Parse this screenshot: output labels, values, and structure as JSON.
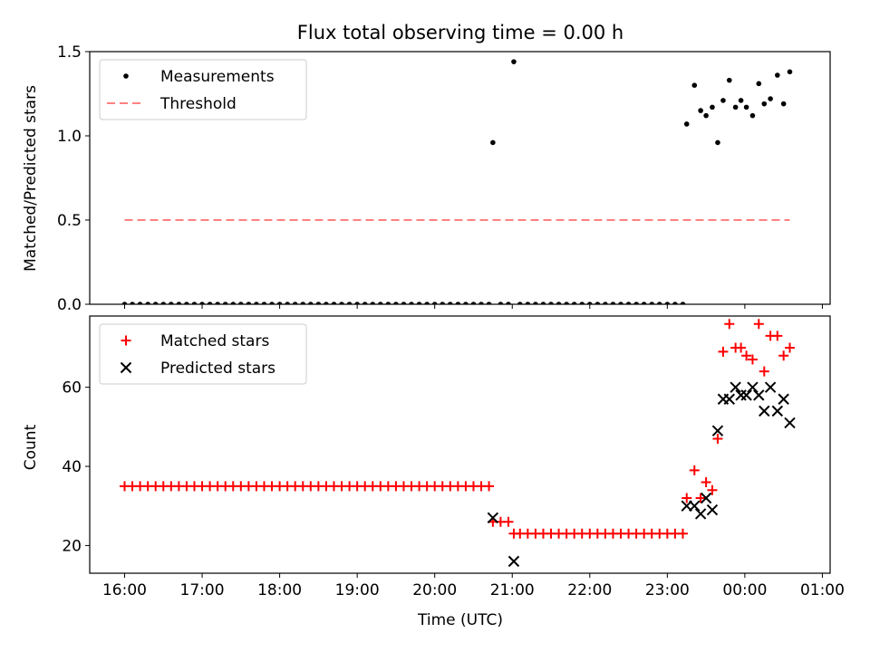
{
  "chart_data": [
    {
      "type": "scatter",
      "title": "Flux total observing time = 0.00 h",
      "ylabel": "Matched/Predicted stars",
      "xlabel": "",
      "xlim": [
        -0.45,
        9.1
      ],
      "ylim": [
        0,
        1.5
      ],
      "yticks": [
        0.0,
        0.5,
        1.0,
        1.5
      ],
      "ytick_labels": [
        "0.0",
        "0.5",
        "1.0",
        "1.5"
      ],
      "legend_position": "upper-left",
      "series": [
        {
          "name": "Measurements",
          "marker": "dot",
          "color": "#000000",
          "points": [
            [
              0.0,
              0
            ],
            [
              0.1,
              0
            ],
            [
              0.2,
              0
            ],
            [
              0.3,
              0
            ],
            [
              0.4,
              0
            ],
            [
              0.5,
              0
            ],
            [
              0.6,
              0
            ],
            [
              0.7,
              0
            ],
            [
              0.8,
              0
            ],
            [
              0.9,
              0
            ],
            [
              1.0,
              0
            ],
            [
              1.1,
              0
            ],
            [
              1.2,
              0
            ],
            [
              1.3,
              0
            ],
            [
              1.4,
              0
            ],
            [
              1.5,
              0
            ],
            [
              1.6,
              0
            ],
            [
              1.7,
              0
            ],
            [
              1.8,
              0
            ],
            [
              1.9,
              0
            ],
            [
              2.0,
              0
            ],
            [
              2.1,
              0
            ],
            [
              2.2,
              0
            ],
            [
              2.3,
              0
            ],
            [
              2.4,
              0
            ],
            [
              2.5,
              0
            ],
            [
              2.6,
              0
            ],
            [
              2.7,
              0
            ],
            [
              2.8,
              0
            ],
            [
              2.9,
              0
            ],
            [
              3.0,
              0
            ],
            [
              3.1,
              0
            ],
            [
              3.2,
              0
            ],
            [
              3.3,
              0
            ],
            [
              3.4,
              0
            ],
            [
              3.5,
              0
            ],
            [
              3.6,
              0
            ],
            [
              3.7,
              0
            ],
            [
              3.8,
              0
            ],
            [
              3.9,
              0
            ],
            [
              4.0,
              0
            ],
            [
              4.1,
              0
            ],
            [
              4.2,
              0
            ],
            [
              4.3,
              0
            ],
            [
              4.4,
              0
            ],
            [
              4.5,
              0
            ],
            [
              4.6,
              0
            ],
            [
              4.7,
              0
            ],
            [
              4.75,
              0.96
            ],
            [
              4.85,
              0
            ],
            [
              4.95,
              0
            ],
            [
              5.02,
              1.44
            ],
            [
              5.1,
              0
            ],
            [
              5.2,
              0
            ],
            [
              5.3,
              0
            ],
            [
              5.4,
              0
            ],
            [
              5.5,
              0
            ],
            [
              5.6,
              0
            ],
            [
              5.7,
              0
            ],
            [
              5.8,
              0
            ],
            [
              5.9,
              0
            ],
            [
              6.0,
              0
            ],
            [
              6.1,
              0
            ],
            [
              6.2,
              0
            ],
            [
              6.3,
              0
            ],
            [
              6.4,
              0
            ],
            [
              6.5,
              0
            ],
            [
              6.6,
              0
            ],
            [
              6.7,
              0
            ],
            [
              6.8,
              0
            ],
            [
              6.9,
              0
            ],
            [
              7.0,
              0
            ],
            [
              7.1,
              0
            ],
            [
              7.2,
              0
            ],
            [
              7.25,
              1.07
            ],
            [
              7.35,
              1.3
            ],
            [
              7.43,
              1.15
            ],
            [
              7.5,
              1.12
            ],
            [
              7.58,
              1.17
            ],
            [
              7.65,
              0.96
            ],
            [
              7.72,
              1.21
            ],
            [
              7.8,
              1.33
            ],
            [
              7.88,
              1.17
            ],
            [
              7.95,
              1.21
            ],
            [
              8.02,
              1.17
            ],
            [
              8.1,
              1.12
            ],
            [
              8.18,
              1.31
            ],
            [
              8.25,
              1.19
            ],
            [
              8.33,
              1.22
            ],
            [
              8.42,
              1.36
            ],
            [
              8.5,
              1.19
            ],
            [
              8.58,
              1.38
            ]
          ]
        },
        {
          "name": "Threshold",
          "marker": "dashed-line",
          "color": "#ff8080",
          "points": [
            [
              0.0,
              0.5
            ],
            [
              8.58,
              0.5
            ]
          ]
        }
      ]
    },
    {
      "type": "scatter",
      "title": "",
      "ylabel": "Count",
      "xlabel": "Time (UTC)",
      "xlim": [
        -0.45,
        9.1
      ],
      "ylim": [
        13,
        78
      ],
      "yticks": [
        20,
        40,
        60
      ],
      "ytick_labels": [
        "20",
        "40",
        "60"
      ],
      "xticks": [
        0,
        1,
        2,
        3,
        4,
        5,
        6,
        7,
        8,
        9
      ],
      "xtick_labels": [
        "16:00",
        "17:00",
        "18:00",
        "19:00",
        "20:00",
        "21:00",
        "22:00",
        "23:00",
        "00:00",
        "01:00"
      ],
      "legend_position": "upper-left",
      "series": [
        {
          "name": "Matched stars",
          "marker": "plus",
          "color": "#ff0000",
          "points": [
            [
              0.0,
              35
            ],
            [
              0.1,
              35
            ],
            [
              0.2,
              35
            ],
            [
              0.3,
              35
            ],
            [
              0.4,
              35
            ],
            [
              0.5,
              35
            ],
            [
              0.6,
              35
            ],
            [
              0.7,
              35
            ],
            [
              0.8,
              35
            ],
            [
              0.9,
              35
            ],
            [
              1.0,
              35
            ],
            [
              1.1,
              35
            ],
            [
              1.2,
              35
            ],
            [
              1.3,
              35
            ],
            [
              1.4,
              35
            ],
            [
              1.5,
              35
            ],
            [
              1.6,
              35
            ],
            [
              1.7,
              35
            ],
            [
              1.8,
              35
            ],
            [
              1.9,
              35
            ],
            [
              2.0,
              35
            ],
            [
              2.1,
              35
            ],
            [
              2.2,
              35
            ],
            [
              2.3,
              35
            ],
            [
              2.4,
              35
            ],
            [
              2.5,
              35
            ],
            [
              2.6,
              35
            ],
            [
              2.7,
              35
            ],
            [
              2.8,
              35
            ],
            [
              2.9,
              35
            ],
            [
              3.0,
              35
            ],
            [
              3.1,
              35
            ],
            [
              3.2,
              35
            ],
            [
              3.3,
              35
            ],
            [
              3.4,
              35
            ],
            [
              3.5,
              35
            ],
            [
              3.6,
              35
            ],
            [
              3.7,
              35
            ],
            [
              3.8,
              35
            ],
            [
              3.9,
              35
            ],
            [
              4.0,
              35
            ],
            [
              4.1,
              35
            ],
            [
              4.2,
              35
            ],
            [
              4.3,
              35
            ],
            [
              4.4,
              35
            ],
            [
              4.5,
              35
            ],
            [
              4.6,
              35
            ],
            [
              4.7,
              35
            ],
            [
              4.75,
              26
            ],
            [
              4.85,
              26
            ],
            [
              4.95,
              26
            ],
            [
              5.02,
              23
            ],
            [
              5.1,
              23
            ],
            [
              5.2,
              23
            ],
            [
              5.3,
              23
            ],
            [
              5.4,
              23
            ],
            [
              5.5,
              23
            ],
            [
              5.6,
              23
            ],
            [
              5.7,
              23
            ],
            [
              5.8,
              23
            ],
            [
              5.9,
              23
            ],
            [
              6.0,
              23
            ],
            [
              6.1,
              23
            ],
            [
              6.2,
              23
            ],
            [
              6.3,
              23
            ],
            [
              6.4,
              23
            ],
            [
              6.5,
              23
            ],
            [
              6.6,
              23
            ],
            [
              6.7,
              23
            ],
            [
              6.8,
              23
            ],
            [
              6.9,
              23
            ],
            [
              7.0,
              23
            ],
            [
              7.1,
              23
            ],
            [
              7.2,
              23
            ],
            [
              7.25,
              32
            ],
            [
              7.35,
              39
            ],
            [
              7.43,
              32
            ],
            [
              7.5,
              36
            ],
            [
              7.58,
              34
            ],
            [
              7.65,
              47
            ],
            [
              7.72,
              69
            ],
            [
              7.8,
              76
            ],
            [
              7.88,
              70
            ],
            [
              7.95,
              70
            ],
            [
              8.02,
              68
            ],
            [
              8.1,
              67
            ],
            [
              8.18,
              76
            ],
            [
              8.25,
              64
            ],
            [
              8.33,
              73
            ],
            [
              8.42,
              73
            ],
            [
              8.5,
              68
            ],
            [
              8.58,
              70
            ]
          ]
        },
        {
          "name": "Predicted stars",
          "marker": "x",
          "color": "#000000",
          "points": [
            [
              4.75,
              27
            ],
            [
              5.02,
              16
            ],
            [
              7.25,
              30
            ],
            [
              7.35,
              30
            ],
            [
              7.43,
              28
            ],
            [
              7.5,
              32
            ],
            [
              7.58,
              29
            ],
            [
              7.65,
              49
            ],
            [
              7.72,
              57
            ],
            [
              7.8,
              57
            ],
            [
              7.88,
              60
            ],
            [
              7.95,
              58
            ],
            [
              8.02,
              58
            ],
            [
              8.1,
              60
            ],
            [
              8.18,
              58
            ],
            [
              8.25,
              54
            ],
            [
              8.33,
              60
            ],
            [
              8.42,
              54
            ],
            [
              8.5,
              57
            ],
            [
              8.58,
              51
            ]
          ]
        }
      ]
    }
  ]
}
